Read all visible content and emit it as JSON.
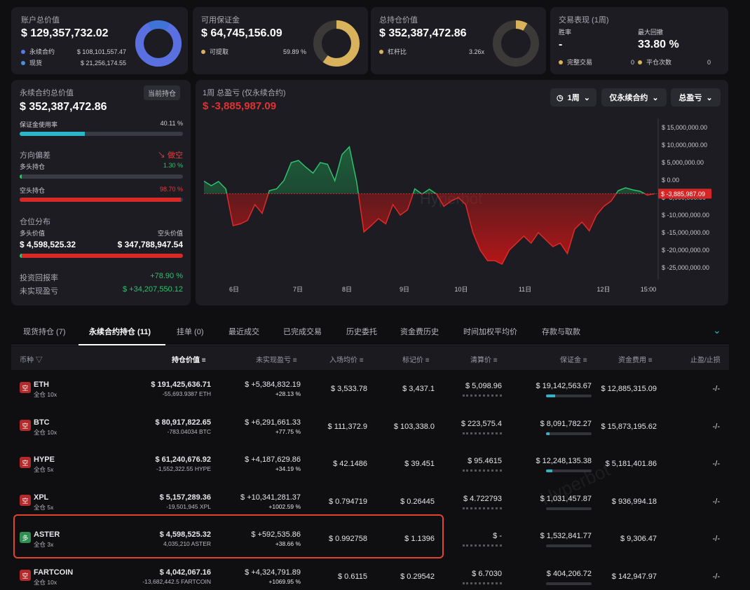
{
  "cards": {
    "account": {
      "title": "账户总价值",
      "value": "$ 129,357,732.02",
      "items": [
        {
          "label": "永续合约",
          "value": "$ 108,101,557.47",
          "color": "#5a79e8"
        },
        {
          "label": "现货",
          "value": "$ 21,256,174.55",
          "color": "#4b8fe0"
        }
      ]
    },
    "margin": {
      "title": "可用保证金",
      "value": "$ 64,745,156.09",
      "item_label": "可提取",
      "item_value": "59.89 %",
      "color": "#d9b25c"
    },
    "position": {
      "title": "总持仓价值",
      "value": "$ 352,387,472.86",
      "item_label": "杠杆比",
      "item_value": "3.26x",
      "color": "#d9b25c"
    },
    "performance": {
      "title": "交易表现 (1周)",
      "winrate_label": "胜率",
      "winrate": "-",
      "drawdown_label": "最大回撤",
      "drawdown": "33.80 %",
      "done_label": "完整交易",
      "done": "0",
      "close_label": "平仓次数",
      "close": "0"
    }
  },
  "left": {
    "title": "永续合约总价值",
    "badge": "当前持仓",
    "value": "$ 352,387,472.86",
    "margin_usage_label": "保证金使用率",
    "margin_usage": "40.11 %",
    "margin_usage_pct": 0.4011,
    "bias_label": "方向偏差",
    "bias_value": "↘ 做空",
    "long_label": "多头持仓",
    "long_pct_text": "1.30 %",
    "long_pct": 0.013,
    "short_label": "空头持仓",
    "short_pct_text": "98.70 %",
    "short_pct": 0.987,
    "dist_label": "仓位分布",
    "long_value_label": "多头价值",
    "short_value_label": "空头价值",
    "long_value": "$ 4,598,525.32",
    "short_value": "$ 347,788,947.54",
    "roi_label": "投资回报率",
    "roi": "+78.90 %",
    "upnl_label": "未实现盈亏",
    "upnl": "$ +34,207,550.12"
  },
  "chart": {
    "title": "1周 总盈亏 (仅永续合约)",
    "value": "$ -3,885,987.09",
    "filters": [
      "1周",
      "仅永续合约",
      "总盈亏"
    ],
    "current_label": "$ -3,885,987.09",
    "watermark": "Hyperbot"
  },
  "chart_data": {
    "type": "area",
    "y_ticks": [
      "$ 15,000,000.00",
      "$ 10,000,000.00",
      "$ 5,000,000.00",
      "$ 0.00",
      "$ -5,000,000.00",
      "$ -10,000,000.00",
      "$ -15,000,000.00",
      "$ -20,000,000.00",
      "$ -25,000,000.00"
    ],
    "x_ticks": [
      "6日",
      "7日",
      "8日",
      "9日",
      "10日",
      "11日",
      "12日",
      "15:00"
    ],
    "ylim": [
      -27000000,
      17000000
    ],
    "baseline": -3885987.09,
    "series": [
      {
        "values": [
          -300000,
          -1600000,
          -400000,
          -2500000,
          -13000000,
          -12500000,
          -11500000,
          -7000000,
          -9500000,
          -3000000,
          -2500000,
          -100000,
          5000000,
          5600000,
          3700000,
          2000000,
          5000000,
          4500000,
          -200000,
          7300000,
          9500000,
          -500000,
          -14800000,
          -13000000,
          -11000000,
          -12500000,
          -7000000,
          -10000000,
          -8500000,
          -2500000,
          -4000000,
          -2600000,
          -4000000,
          -7500000,
          -6000000,
          -5000000,
          -7000000,
          -15000000,
          -20000000,
          -23000000,
          -23000000,
          -24000000,
          -20000000,
          -18000000,
          -16000000,
          -18000000,
          -15000000,
          -17000000,
          -19000000,
          -18000000,
          -21000000,
          -14000000,
          -12000000,
          -14500000,
          -10000000,
          -7500000,
          -6000000,
          -3000000,
          -2200000,
          -2800000,
          -3200000,
          -4300000,
          -3886000
        ]
      }
    ]
  },
  "tabs": [
    "现货持仓 (7)",
    "永续合约持仓 (11)",
    "挂单 (0)",
    "最近成交",
    "已完成交易",
    "历史委托",
    "资金费历史",
    "时间加权平均价",
    "存款与取款"
  ],
  "table": {
    "headers": [
      "币种",
      "持仓价值",
      "未实现盈亏",
      "入场均价",
      "标记价",
      "清算价",
      "保证金",
      "资金费用",
      "止盈/止损"
    ],
    "rows": [
      {
        "side": "空",
        "side_color": "#b42a2a",
        "coin": "ETH",
        "mode": "全仓 10x",
        "value": "$ 191,425,636.71",
        "size": "-55,693.9387 ETH",
        "pnl": "$ +5,384,832.19",
        "pnl_pct": "+28.13 %",
        "entry": "$ 3,533.78",
        "mark": "$ 3,437.1",
        "liq": "$ 5,098.96",
        "margin": "$ 19,142,563.67",
        "margin_fill": 0.2,
        "funding": "$ 12,885,315.09",
        "tpsl": "-/-"
      },
      {
        "side": "空",
        "side_color": "#b42a2a",
        "coin": "BTC",
        "mode": "全仓 10x",
        "value": "$ 80,917,822.65",
        "size": "-783.04034 BTC",
        "pnl": "$ +6,291,661.33",
        "pnl_pct": "+77.75 %",
        "entry": "$ 111,372.9",
        "mark": "$ 103,338.0",
        "liq": "$ 223,575.4",
        "margin": "$ 8,091,782.27",
        "margin_fill": 0.08,
        "funding": "$ 15,873,195.62",
        "tpsl": "-/-"
      },
      {
        "side": "空",
        "side_color": "#b42a2a",
        "coin": "HYPE",
        "mode": "全仓 5x",
        "value": "$ 61,240,676.92",
        "size": "-1,552,322.55 HYPE",
        "pnl": "$ +4,187,629.86",
        "pnl_pct": "+34.19 %",
        "entry": "$ 42.1486",
        "mark": "$ 39.451",
        "liq": "$ 95.4615",
        "margin": "$ 12,248,135.38",
        "margin_fill": 0.14,
        "funding": "$ 5,181,401.86",
        "tpsl": "-/-"
      },
      {
        "side": "空",
        "side_color": "#b42a2a",
        "coin": "XPL",
        "mode": "全仓 5x",
        "value": "$ 5,157,289.36",
        "size": "-19,501,945 XPL",
        "pnl": "$ +10,341,281.37",
        "pnl_pct": "+1002.59 %",
        "entry": "$ 0.794719",
        "mark": "$ 0.26445",
        "liq": "$ 4.722793",
        "margin": "$ 1,031,457.87",
        "margin_fill": 0.0,
        "funding": "$ 936,994.18",
        "tpsl": "-/-"
      },
      {
        "side": "多",
        "side_color": "#2f8f4e",
        "coin": "ASTER",
        "mode": "全仓 3x",
        "value": "$ 4,598,525.32",
        "size": "4,035,210 ASTER",
        "pnl": "$ +592,535.86",
        "pnl_pct": "+38.66 %",
        "entry": "$ 0.992758",
        "mark": "$ 1.1396",
        "liq": "$ -",
        "margin": "$ 1,532,841.77",
        "margin_fill": 0.0,
        "funding": "$ 9,306.47",
        "tpsl": "-/-"
      },
      {
        "side": "空",
        "side_color": "#b42a2a",
        "coin": "FARTCOIN",
        "mode": "全仓 10x",
        "value": "$ 4,042,067.16",
        "size": "-13,682,442.5 FARTCOIN",
        "pnl": "$ +4,324,791.89",
        "pnl_pct": "+1069.95 %",
        "entry": "$ 0.6115",
        "mark": "$ 0.29542",
        "liq": "$ 6.7030",
        "margin": "$ 404,206.72",
        "margin_fill": 0.0,
        "funding": "$ 142,947.97",
        "tpsl": "-/-"
      }
    ]
  },
  "watermark_table": "Hyperbot"
}
